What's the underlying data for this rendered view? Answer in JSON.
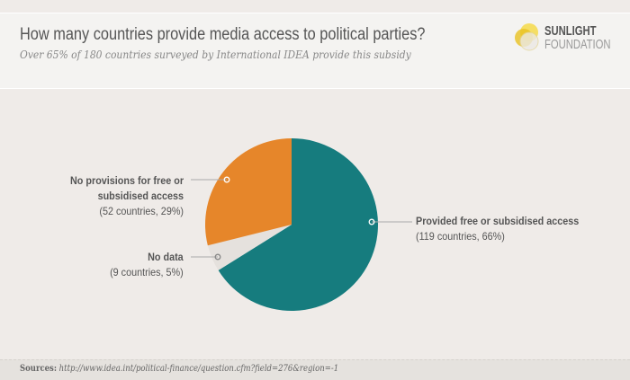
{
  "header": {
    "title": "How many countries provide media access to political parties?",
    "subtitle": "Over 65% of 180 countries surveyed by International IDEA provide this subsidy",
    "logo_line1": "SUNLIGHT",
    "logo_line2": "FOUNDATION"
  },
  "footer": {
    "label": "Sources:",
    "url": "http://www.idea.int/political-finance/question.cfm?field=276&region=-1"
  },
  "colors": {
    "provided": "#167c7e",
    "no_provisions": "#e6862a",
    "no_data": "#e5e1dd"
  },
  "chart_data": {
    "type": "pie",
    "title": "How many countries provide media access to political parties?",
    "slices": [
      {
        "name": "Provided free or subsidised access",
        "count": 119,
        "percent": 66,
        "detail": "(119 countries, 66%)",
        "color": "#167c7e"
      },
      {
        "name": "No data",
        "count": 9,
        "percent": 5,
        "detail": "(9 countries, 5%)",
        "color": "#e5e1dd"
      },
      {
        "name": "No provisions for free or subsidised access",
        "name_line1": "No provisions for free or",
        "name_line2": "subsidised access",
        "count": 52,
        "percent": 29,
        "detail": "(52 countries, 29%)",
        "color": "#e6862a"
      }
    ]
  }
}
